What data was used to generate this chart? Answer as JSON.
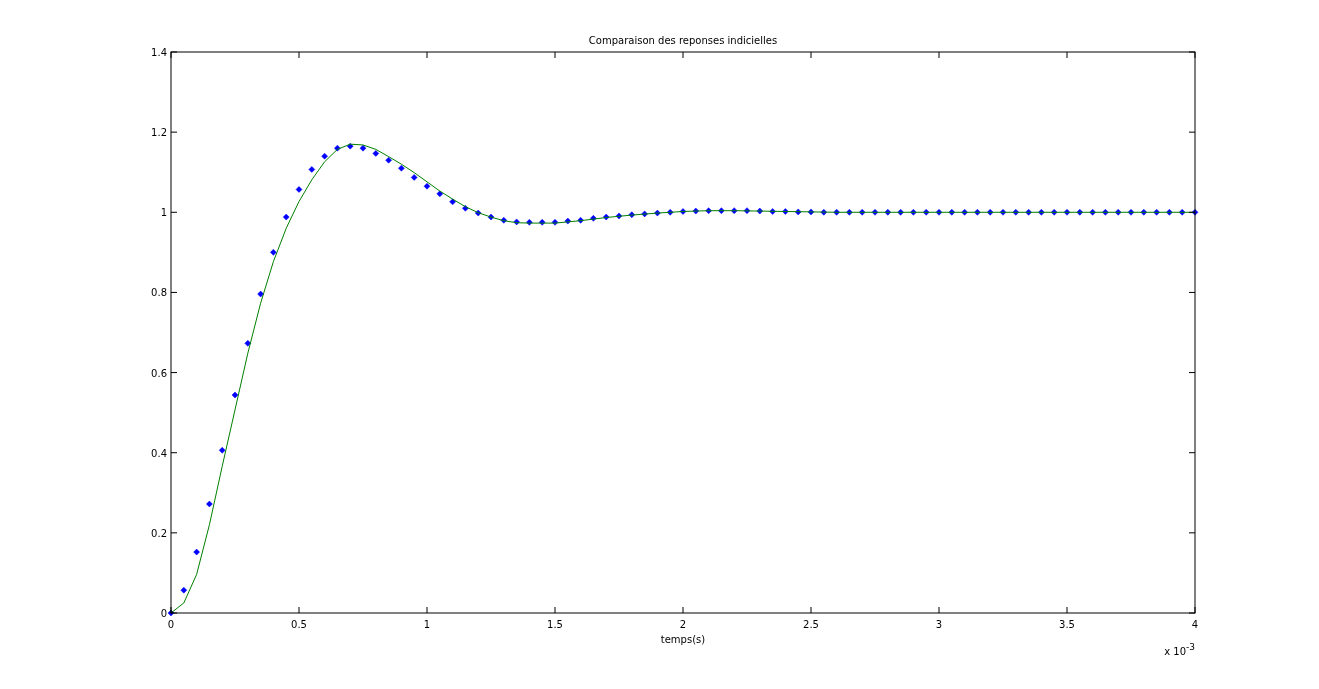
{
  "chart_data": {
    "type": "line",
    "title": "Comparaison des reponses indicielles",
    "xlabel": "temps(s)",
    "annotations": [
      "x 10$^{-3}$"
    ],
    "xlim": [
      0,
      4
    ],
    "xticks": [
      0,
      0.5,
      1,
      1.5,
      2,
      2.5,
      3,
      3.5,
      4
    ],
    "ylim": [
      0,
      1.4
    ],
    "yticks": [
      0,
      0.2,
      0.4,
      0.6,
      0.8,
      1,
      1.2,
      1.4
    ],
    "grid": false,
    "series": [
      {
        "type": "scatter",
        "marker": "diamond",
        "color": "#0000ff",
        "x": [
          0,
          0.05,
          0.1,
          0.15,
          0.2,
          0.25,
          0.3,
          0.35,
          0.4,
          0.45,
          0.5,
          0.55,
          0.6,
          0.65,
          0.7,
          0.75,
          0.8,
          0.85,
          0.9,
          0.95,
          1,
          1.05,
          1.1,
          1.15,
          1.2,
          1.25,
          1.3,
          1.35,
          1.4,
          1.45,
          1.5,
          1.55,
          1.6,
          1.65,
          1.7,
          1.75,
          1.8,
          1.85,
          1.9,
          1.95,
          2,
          2.05,
          2.1,
          2.15,
          2.2,
          2.25,
          2.3,
          2.35,
          2.4,
          2.45,
          2.5,
          2.55,
          2.6,
          2.65,
          2.7,
          2.75,
          2.8,
          2.85,
          2.9,
          2.95,
          3,
          3.05,
          3.1,
          3.15,
          3.2,
          3.25,
          3.3,
          3.35,
          3.4,
          3.45,
          3.5,
          3.55,
          3.6,
          3.65,
          3.7,
          3.75,
          3.8,
          3.85,
          3.9,
          3.95,
          4
        ],
        "values": [
          0,
          0.057,
          0.152,
          0.272,
          0.406,
          0.544,
          0.673,
          0.796,
          0.9,
          0.988,
          1.057,
          1.107,
          1.14,
          1.16,
          1.165,
          1.16,
          1.147,
          1.13,
          1.11,
          1.087,
          1.065,
          1.046,
          1.026,
          1.01,
          0.998,
          0.988,
          0.98,
          0.976,
          0.975,
          0.975,
          0.975,
          0.978,
          0.98,
          0.985,
          0.988,
          0.991,
          0.994,
          0.996,
          0.998,
          1,
          1.002,
          1.003,
          1.004,
          1.004,
          1.004,
          1.004,
          1.003,
          1.002,
          1.002,
          1.001,
          1.001,
          1,
          1,
          1,
          1,
          1,
          1,
          1,
          1,
          1,
          1,
          1,
          1,
          1,
          1,
          1,
          1,
          1,
          1,
          1,
          1,
          1,
          1,
          1,
          1,
          1,
          1,
          1,
          1,
          1,
          1
        ]
      },
      {
        "marker": "none",
        "line_style": "solid",
        "color": "#008000",
        "x": [
          0,
          0.05,
          0.1,
          0.15,
          0.2,
          0.25,
          0.3,
          0.35,
          0.4,
          0.45,
          0.5,
          0.55,
          0.6,
          0.65,
          0.7,
          0.75,
          0.8,
          0.85,
          0.9,
          0.95,
          1,
          1.05,
          1.1,
          1.15,
          1.2,
          1.25,
          1.3,
          1.35,
          1.4,
          1.45,
          1.5,
          1.55,
          1.6,
          1.65,
          1.7,
          1.8,
          1.9,
          2,
          2.1,
          2.2,
          2.3,
          2.4,
          2.5,
          2.6,
          3,
          3.5,
          4
        ],
        "values": [
          0,
          0.025,
          0.096,
          0.22,
          0.366,
          0.507,
          0.648,
          0.773,
          0.877,
          0.96,
          1.027,
          1.081,
          1.126,
          1.157,
          1.17,
          1.168,
          1.157,
          1.139,
          1.12,
          1.099,
          1.076,
          1.053,
          1.033,
          1.014,
          0.999,
          0.988,
          0.979,
          0.974,
          0.973,
          0.973,
          0.973,
          0.976,
          0.979,
          0.983,
          0.987,
          0.993,
          0.998,
          1.002,
          1.004,
          1.004,
          1.003,
          1.002,
          1.001,
          1,
          1,
          1,
          1
        ]
      }
    ]
  }
}
